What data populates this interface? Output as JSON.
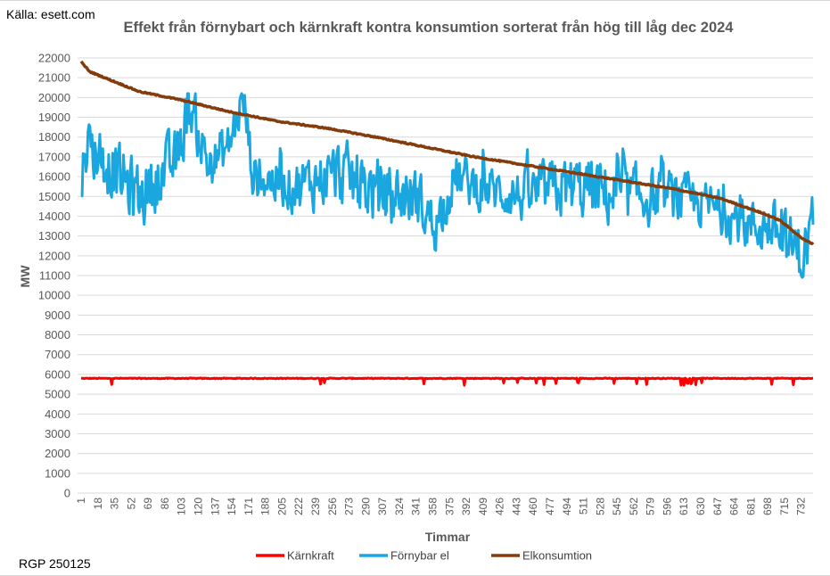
{
  "source_note": "Källa: esett.com",
  "footer_note": "RGP 250125",
  "chart_data": {
    "type": "line",
    "title": "Effekt från förnybart och kärnkraft kontra konsumtion sorterat från hög till låg dec 2024",
    "xlabel": "Timmar",
    "ylabel": "MW",
    "ylim": [
      0,
      22000
    ],
    "y_step": 1000,
    "y_ticks": [
      "0",
      "1000",
      "2000",
      "3000",
      "4000",
      "5000",
      "6000",
      "7000",
      "8000",
      "9000",
      "10000",
      "11000",
      "12000",
      "13000",
      "14000",
      "15000",
      "16000",
      "17000",
      "18000",
      "19000",
      "20000",
      "21000",
      "22000"
    ],
    "x_range": [
      1,
      744
    ],
    "x_ticks": [
      "1",
      "18",
      "35",
      "52",
      "69",
      "86",
      "103",
      "120",
      "137",
      "154",
      "171",
      "188",
      "205",
      "222",
      "239",
      "256",
      "273",
      "290",
      "307",
      "324",
      "341",
      "358",
      "375",
      "392",
      "409",
      "426",
      "443",
      "460",
      "477",
      "494",
      "511",
      "528",
      "545",
      "562",
      "579",
      "596",
      "613",
      "630",
      "647",
      "664",
      "681",
      "698",
      "715",
      "732"
    ],
    "grid": "horizontal",
    "legend_position": "bottom",
    "series": [
      {
        "name": "Kärnkraft",
        "color": "#ff0000",
        "description": "Nearly flat around 5800 MW with occasional dips to ~5400 MW, dips more frequent after hour ~400",
        "base_value": 5800,
        "dip_value": 5450,
        "anchors": [
          [
            1,
            5800
          ],
          [
            744,
            5800
          ]
        ]
      },
      {
        "name": "Förnybar el",
        "color": "#1aa7e0",
        "description": "Highly volatile hourly renewable output, roughly 11000–20200 MW",
        "anchors": [
          [
            1,
            16000
          ],
          [
            5,
            17800
          ],
          [
            40,
            16000
          ],
          [
            60,
            15000
          ],
          [
            100,
            17000
          ],
          [
            110,
            19800
          ],
          [
            130,
            16500
          ],
          [
            150,
            17500
          ],
          [
            165,
            20100
          ],
          [
            175,
            16000
          ],
          [
            220,
            15500
          ],
          [
            260,
            16200
          ],
          [
            300,
            15200
          ],
          [
            340,
            15000
          ],
          [
            360,
            13500
          ],
          [
            380,
            16000
          ],
          [
            400,
            15500
          ],
          [
            450,
            15000
          ],
          [
            500,
            15500
          ],
          [
            550,
            15000
          ],
          [
            600,
            15000
          ],
          [
            640,
            14500
          ],
          [
            680,
            13500
          ],
          [
            700,
            13500
          ],
          [
            720,
            12500
          ],
          [
            735,
            12000
          ],
          [
            744,
            14000
          ]
        ],
        "min": 10900,
        "max": 20200
      },
      {
        "name": "Elkonsumtion",
        "color": "#843c0c",
        "description": "Hourly consumption sorted from high to low",
        "anchors": [
          [
            1,
            21800
          ],
          [
            10,
            21300
          ],
          [
            30,
            20900
          ],
          [
            60,
            20300
          ],
          [
            100,
            19900
          ],
          [
            150,
            19300
          ],
          [
            200,
            18800
          ],
          [
            250,
            18450
          ],
          [
            300,
            18000
          ],
          [
            350,
            17500
          ],
          [
            400,
            17000
          ],
          [
            450,
            16600
          ],
          [
            500,
            16200
          ],
          [
            550,
            15800
          ],
          [
            600,
            15400
          ],
          [
            650,
            14900
          ],
          [
            690,
            14200
          ],
          [
            710,
            13800
          ],
          [
            725,
            13200
          ],
          [
            735,
            12800
          ],
          [
            744,
            12600
          ]
        ]
      }
    ]
  }
}
